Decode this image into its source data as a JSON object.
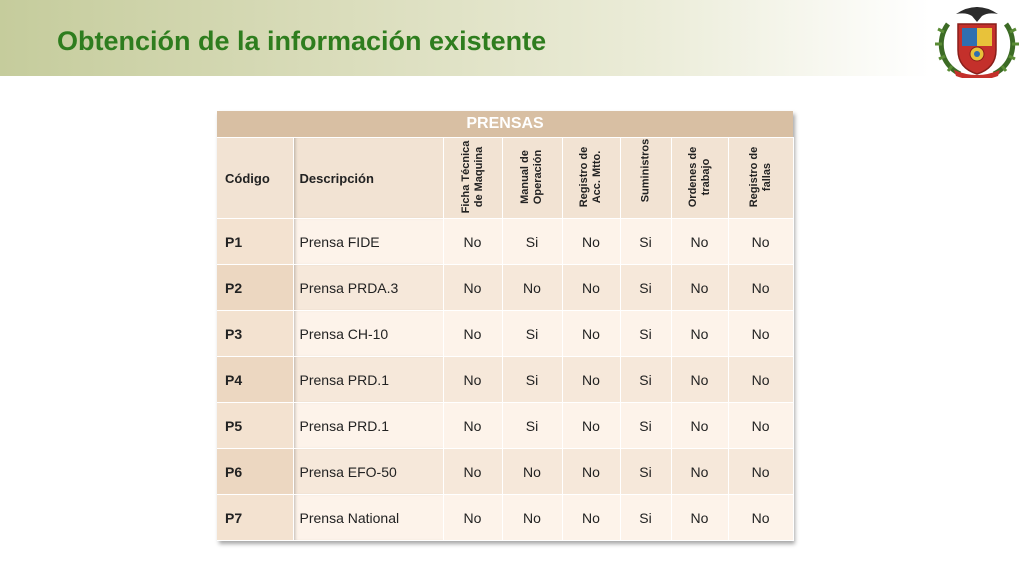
{
  "title": "Obtención de la información existente",
  "colors": {
    "title": "#2e7d1e",
    "table_caption_bg": "#d8bfa3",
    "table_header_bg": "#f2e3d3",
    "row_light": "#fdf3ea",
    "row_dark": "#f6e8da"
  },
  "logo": {
    "icon": "university-crest-icon"
  },
  "table": {
    "caption": "PRENSAS",
    "headers": {
      "code": "Código",
      "description": "Descripción",
      "ficha": "Ficha Técnica de Maquina",
      "manual": "Manual de Operación",
      "registro_acc": "Registro de Acc. Mtto.",
      "suministros": "Suministros",
      "ordenes": "Ordenes de trabajo",
      "registro_fallas": "Registro de fallas"
    },
    "rows": [
      {
        "code": "P1",
        "description": "Prensa FIDE",
        "ficha": "No",
        "manual": "Si",
        "registro_acc": "No",
        "suministros": "Si",
        "ordenes": "No",
        "registro_fallas": "No"
      },
      {
        "code": "P2",
        "description": "Prensa PRDA.3",
        "ficha": "No",
        "manual": "No",
        "registro_acc": "No",
        "suministros": "Si",
        "ordenes": "No",
        "registro_fallas": "No"
      },
      {
        "code": "P3",
        "description": "Prensa CH-10",
        "ficha": "No",
        "manual": "Si",
        "registro_acc": "No",
        "suministros": "Si",
        "ordenes": "No",
        "registro_fallas": "No"
      },
      {
        "code": "P4",
        "description": "Prensa PRD.1",
        "ficha": "No",
        "manual": "Si",
        "registro_acc": "No",
        "suministros": "Si",
        "ordenes": "No",
        "registro_fallas": "No"
      },
      {
        "code": "P5",
        "description": "Prensa PRD.1",
        "ficha": "No",
        "manual": "Si",
        "registro_acc": "No",
        "suministros": "Si",
        "ordenes": "No",
        "registro_fallas": "No"
      },
      {
        "code": "P6",
        "description": "Prensa EFO-50",
        "ficha": "No",
        "manual": "No",
        "registro_acc": "No",
        "suministros": "Si",
        "ordenes": "No",
        "registro_fallas": "No"
      },
      {
        "code": "P7",
        "description": "Prensa National",
        "ficha": "No",
        "manual": "No",
        "registro_acc": "No",
        "suministros": "Si",
        "ordenes": "No",
        "registro_fallas": "No"
      }
    ]
  }
}
